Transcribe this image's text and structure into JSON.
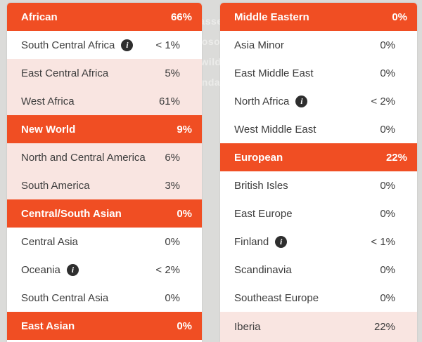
{
  "theme": {
    "accent": "#F04E23",
    "highlight_row": "#F9E5E1",
    "page_background": "#DBDBD9",
    "header_text": "#FFFFFF",
    "row_text": "#3D3D3D",
    "info_glyph": "i"
  },
  "background_fragments": [
    {
      "text": "asse"
    },
    {
      "text": "oso"
    },
    {
      "text": "wild"
    },
    {
      "text": "nda"
    }
  ],
  "columns": [
    {
      "name": "left",
      "rows": [
        {
          "type": "header",
          "label": "African",
          "value": "66%"
        },
        {
          "type": "sub",
          "label": "South Central Africa",
          "info": true,
          "value": "< 1%",
          "highlight": false
        },
        {
          "type": "sub",
          "label": "East Central Africa",
          "info": false,
          "value": "5%",
          "highlight": true
        },
        {
          "type": "sub",
          "label": "West Africa",
          "info": false,
          "value": "61%",
          "highlight": true
        },
        {
          "type": "header",
          "label": "New World",
          "value": "9%"
        },
        {
          "type": "sub",
          "label": "North and Central America",
          "info": false,
          "value": "6%",
          "highlight": true
        },
        {
          "type": "sub",
          "label": "South America",
          "info": false,
          "value": "3%",
          "highlight": true
        },
        {
          "type": "header",
          "label": "Central/South Asian",
          "value": "0%"
        },
        {
          "type": "sub",
          "label": "Central Asia",
          "info": false,
          "value": "0%",
          "highlight": false
        },
        {
          "type": "sub",
          "label": "Oceania",
          "info": true,
          "value": "< 2%",
          "highlight": false
        },
        {
          "type": "sub",
          "label": "South Central Asia",
          "info": false,
          "value": "0%",
          "highlight": false
        },
        {
          "type": "header",
          "label": "East Asian",
          "value": "0%"
        }
      ]
    },
    {
      "name": "right",
      "rows": [
        {
          "type": "header",
          "label": "Middle Eastern",
          "value": "0%"
        },
        {
          "type": "sub",
          "label": "Asia Minor",
          "info": false,
          "value": "0%",
          "highlight": false
        },
        {
          "type": "sub",
          "label": "East Middle East",
          "info": false,
          "value": "0%",
          "highlight": false
        },
        {
          "type": "sub",
          "label": "North Africa",
          "info": true,
          "value": "< 2%",
          "highlight": false
        },
        {
          "type": "sub",
          "label": "West Middle East",
          "info": false,
          "value": "0%",
          "highlight": false
        },
        {
          "type": "header",
          "label": "European",
          "value": "22%"
        },
        {
          "type": "sub",
          "label": "British Isles",
          "info": false,
          "value": "0%",
          "highlight": false
        },
        {
          "type": "sub",
          "label": "East Europe",
          "info": false,
          "value": "0%",
          "highlight": false
        },
        {
          "type": "sub",
          "label": "Finland",
          "info": true,
          "value": "< 1%",
          "highlight": false
        },
        {
          "type": "sub",
          "label": "Scandinavia",
          "info": false,
          "value": "0%",
          "highlight": false
        },
        {
          "type": "sub",
          "label": "Southeast Europe",
          "info": false,
          "value": "0%",
          "highlight": false
        },
        {
          "type": "sub",
          "label": "Iberia",
          "info": false,
          "value": "22%",
          "highlight": true,
          "fill": true
        }
      ]
    }
  ]
}
